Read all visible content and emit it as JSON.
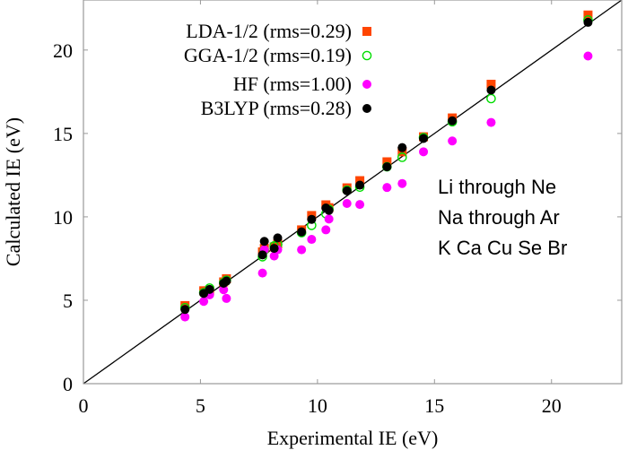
{
  "chart_data": {
    "type": "scatter",
    "xlabel": "Experimental IE (eV)",
    "ylabel": "Calculated IE (eV)",
    "xlim": [
      0,
      23
    ],
    "ylim": [
      0,
      23
    ],
    "xticks": [
      "0",
      "5",
      "10",
      "15",
      "20"
    ],
    "yticks": [
      "0",
      "5",
      "10",
      "15",
      "20"
    ],
    "grid": false,
    "legend_position": "top-left",
    "reference_line": "y = x",
    "annotations": [
      "Li through Ne",
      "Na through Ar",
      "K Ca Cu Se Br"
    ],
    "x": [
      4.34,
      5.14,
      5.39,
      5.99,
      6.11,
      7.65,
      7.73,
      8.15,
      8.3,
      9.32,
      9.75,
      10.36,
      10.49,
      11.26,
      11.81,
      12.97,
      13.62,
      14.53,
      15.76,
      17.42,
      21.56
    ],
    "series": [
      {
        "name": "LDA-1/2 (rms=0.29)",
        "marker": "square",
        "color": "#ff4500",
        "values": [
          4.68,
          5.57,
          5.6,
          6.1,
          6.29,
          7.9,
          8.11,
          8.2,
          8.38,
          9.22,
          10.08,
          10.72,
          10.55,
          11.74,
          12.17,
          13.3,
          13.9,
          14.8,
          15.93,
          17.95,
          22.1
        ]
      },
      {
        "name": "GGA-1/2 (rms=0.19)",
        "marker": "open-circle",
        "color": "#00dd00",
        "values": [
          4.55,
          5.45,
          5.73,
          6.05,
          6.2,
          7.61,
          8.0,
          8.26,
          8.35,
          9.05,
          9.49,
          10.19,
          10.45,
          11.6,
          11.78,
          13.0,
          13.57,
          14.75,
          15.7,
          17.09,
          21.8
        ]
      },
      {
        "name": "HF (rms=1.00)",
        "marker": "filled-circle",
        "color": "#ff00ff",
        "values": [
          4.0,
          4.93,
          5.33,
          5.63,
          5.11,
          6.63,
          8.03,
          7.65,
          8.03,
          8.03,
          8.65,
          9.22,
          9.87,
          10.8,
          10.74,
          11.76,
          12.0,
          13.9,
          14.55,
          15.66,
          19.64
        ]
      },
      {
        "name": "B3LYP (rms=0.28)",
        "marker": "filled-circle",
        "color": "#000000",
        "values": [
          4.45,
          5.41,
          5.65,
          6.02,
          6.15,
          7.72,
          8.53,
          8.11,
          8.74,
          9.1,
          9.85,
          10.53,
          10.39,
          11.56,
          11.9,
          13.0,
          14.15,
          14.7,
          15.76,
          17.6,
          21.66
        ]
      }
    ]
  }
}
